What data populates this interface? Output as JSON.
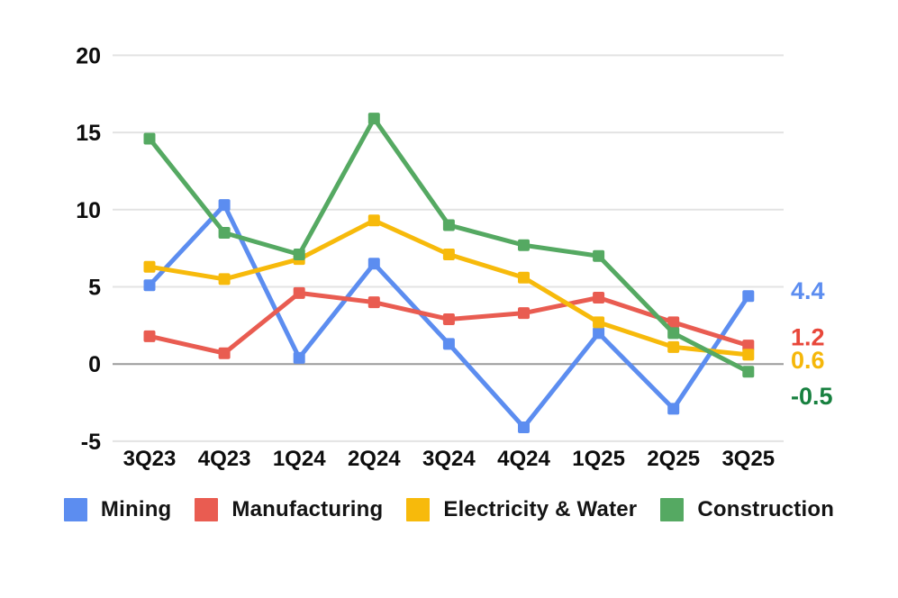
{
  "chart_data": {
    "type": "line",
    "title": "",
    "xlabel": "",
    "ylabel": "",
    "categories": [
      "3Q23",
      "4Q23",
      "1Q24",
      "2Q24",
      "3Q24",
      "4Q24",
      "1Q25",
      "2Q25",
      "3Q25"
    ],
    "series": [
      {
        "name": "Mining",
        "color": "#5c8df0",
        "values": [
          5.1,
          10.3,
          0.4,
          6.5,
          1.3,
          -4.1,
          2.0,
          -2.9,
          4.4
        ],
        "end_label": "4.4",
        "end_label_color": "#5c8df0"
      },
      {
        "name": "Manufacturing",
        "color": "#e95c51",
        "values": [
          1.8,
          0.7,
          4.6,
          4.0,
          2.9,
          3.3,
          4.3,
          2.7,
          1.2
        ],
        "end_label": "1.2",
        "end_label_color": "#e8473a"
      },
      {
        "name": "Electricity & Water",
        "color": "#f7ba0b",
        "values": [
          6.3,
          5.5,
          6.8,
          9.3,
          7.1,
          5.6,
          2.7,
          1.1,
          0.6
        ],
        "end_label": "0.6",
        "end_label_color": "#f5b70a"
      },
      {
        "name": "Construction",
        "color": "#55a962",
        "values": [
          14.6,
          8.5,
          7.1,
          15.9,
          9.0,
          7.7,
          7.0,
          2.0,
          -0.5
        ],
        "end_label": "-0.5",
        "end_label_color": "#17803f"
      }
    ],
    "y_ticks": [
      20,
      15,
      10,
      5,
      0,
      -5
    ],
    "ylim": [
      -6.5,
      21.5
    ],
    "grid": true,
    "zero_line": true,
    "legend_position": "bottom",
    "marker": "square"
  },
  "colors": {
    "background": "#ffffff",
    "gridline": "#e3e3e3",
    "zero_line": "#9b9b9b",
    "axis_text": "#0d0d0d"
  }
}
